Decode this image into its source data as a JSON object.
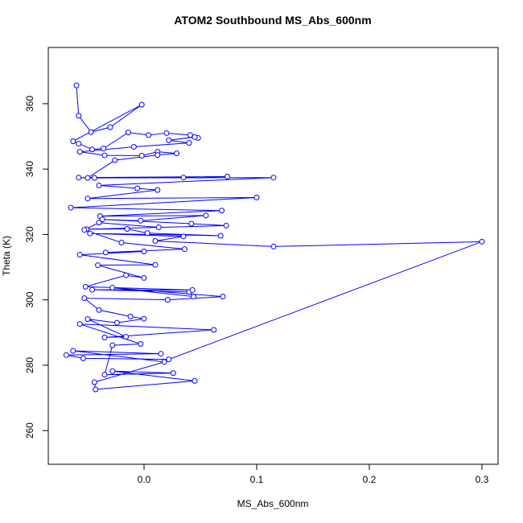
{
  "chart_data": {
    "type": "line",
    "title": "ATOM2 Southbound MS_Abs_600nm",
    "x_label": "MS_Abs_600nm",
    "y_label": "Theta (K)",
    "color": "#0000ff",
    "x": [
      -0.06,
      -0.058,
      -0.047,
      -0.03,
      -0.002,
      -0.063,
      -0.058,
      -0.046,
      -0.036,
      -0.014,
      0.004,
      0.02,
      0.041,
      0.048,
      0.045,
      0.022,
      0.04,
      -0.009,
      -0.057,
      -0.035,
      -0.002,
      0.012,
      0.029,
      0.012,
      -0.026,
      -0.05,
      0.035,
      0.074,
      -0.058,
      -0.044,
      0.115,
      -0.04,
      -0.006,
      0.012,
      -0.05,
      0.1,
      -0.065,
      0.069,
      -0.039,
      0.055,
      -0.003,
      -0.037,
      0.042,
      0.073,
      -0.051,
      -0.015,
      0.003,
      0.068,
      -0.048,
      0.035,
      0.01,
      0.115,
      0.3,
      0.022,
      -0.054,
      -0.069,
      0.015,
      -0.063,
      0.018,
      -0.044,
      -0.043,
      0.045,
      -0.028,
      0.026,
      -0.035,
      -0.028,
      -0.003,
      -0.057,
      0.062,
      -0.035,
      -0.016,
      -0.05,
      -0.024,
      0.0,
      -0.012,
      -0.04,
      -0.053,
      0.021,
      0.07,
      -0.028,
      0.044,
      0.04,
      -0.046,
      0.043,
      -0.052,
      -0.016,
      0.0,
      -0.041,
      0.01,
      -0.057,
      0.0,
      -0.034,
      0.036,
      -0.02,
      -0.053,
      -0.04,
      0.013
    ],
    "values": [
      365.6,
      356.3,
      351.3,
      352.8,
      359.7,
      348.5,
      347.8,
      346.0,
      346.3,
      351.2,
      350.4,
      351.0,
      350.4,
      349.5,
      349.8,
      348.8,
      348.0,
      346.8,
      345.3,
      344.2,
      344.1,
      345.3,
      344.8,
      344.3,
      342.7,
      337.3,
      337.4,
      337.7,
      337.4,
      337.3,
      337.4,
      335.0,
      334.1,
      333.6,
      331.0,
      331.3,
      328.2,
      327.3,
      325.6,
      325.8,
      324.2,
      324.6,
      323.3,
      322.7,
      321.6,
      321.7,
      320.4,
      319.6,
      320.3,
      319.4,
      318.0,
      316.3,
      317.8,
      281.8,
      282.1,
      283.1,
      283.5,
      284.4,
      281.0,
      274.8,
      272.6,
      275.2,
      278.2,
      277.6,
      277.1,
      286.1,
      286.5,
      292.6,
      290.8,
      288.5,
      288.7,
      294.1,
      293.0,
      294.2,
      294.9,
      296.9,
      300.5,
      300.0,
      301.0,
      303.7,
      301.0,
      302.4,
      303.1,
      303.0,
      304.0,
      307.5,
      306.7,
      310.6,
      310.7,
      313.8,
      314.8,
      314.5,
      315.5,
      317.5,
      321.4,
      323.6,
      322.2
    ],
    "xlim": [
      -0.085,
      0.3143
    ],
    "ylim": [
      249.7,
      377.2
    ],
    "xticks": [
      {
        "value": 0,
        "label": "0.0"
      },
      {
        "value": 0.1,
        "label": "0.1"
      },
      {
        "value": 0.2,
        "label": "0.2"
      },
      {
        "value": 0.3,
        "label": "0.3"
      }
    ],
    "yticks": [
      260,
      280,
      300,
      320,
      340,
      360
    ]
  }
}
